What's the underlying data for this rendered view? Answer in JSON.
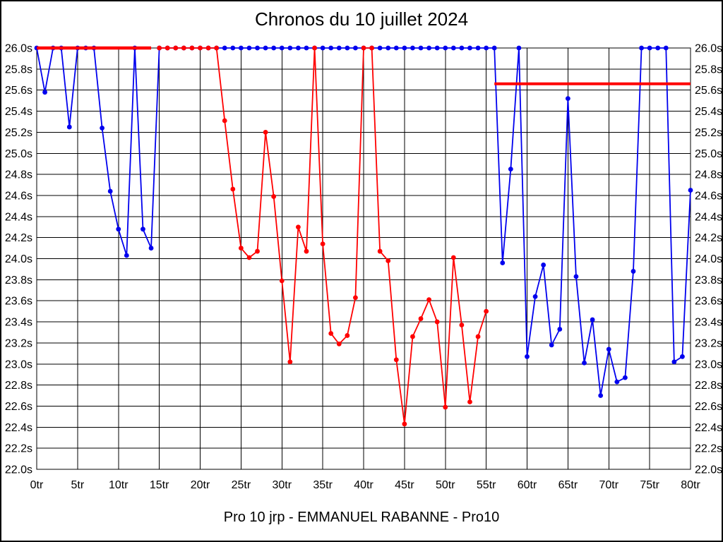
{
  "chart_data": {
    "type": "line",
    "title": "Chronos du 10 juillet 2024",
    "caption": "Pro 10 jrp - EMMANUEL RABANNE - Pro10",
    "x_unit": "tr",
    "y_unit": "s",
    "xlim": [
      0,
      80
    ],
    "ylim": [
      22.0,
      26.0
    ],
    "x_tick_step": 5,
    "y_tick_step": 0.2,
    "grid": true,
    "legend": "none",
    "x_tick_labels": [
      "0tr",
      "5tr",
      "10tr",
      "15tr",
      "20tr",
      "25tr",
      "30tr",
      "35tr",
      "40tr",
      "45tr",
      "50tr",
      "55tr",
      "60tr",
      "65tr",
      "70tr",
      "75tr",
      "80tr"
    ],
    "y_tick_labels": [
      "26.0s",
      "25.8s",
      "25.6s",
      "25.4s",
      "25.2s",
      "25.0s",
      "24.8s",
      "24.6s",
      "24.4s",
      "24.2s",
      "24.0s",
      "23.8s",
      "23.6s",
      "23.4s",
      "23.2s",
      "23.0s",
      "22.8s",
      "22.6s",
      "22.4s",
      "22.2s",
      "22.0s"
    ],
    "series": [
      {
        "name": "blue-series",
        "color": "#0000ee",
        "marker": "circle",
        "points": [
          [
            0,
            26.0
          ],
          [
            1,
            25.58
          ],
          [
            2,
            26.0
          ],
          [
            3,
            26.0
          ],
          [
            4,
            25.25
          ],
          [
            5,
            26.0
          ],
          [
            6,
            26.0
          ],
          [
            7,
            26.0
          ],
          [
            8,
            25.24
          ],
          [
            9,
            24.64
          ],
          [
            10,
            24.28
          ],
          [
            11,
            24.03
          ],
          [
            12,
            26.0
          ],
          [
            13,
            24.28
          ],
          [
            14,
            24.1
          ],
          [
            15,
            26.0
          ],
          [
            16,
            26.0
          ],
          [
            17,
            26.0
          ],
          [
            18,
            26.0
          ],
          [
            19,
            26.0
          ],
          [
            20,
            26.0
          ],
          [
            21,
            26.0
          ],
          [
            22,
            26.0
          ],
          [
            23,
            26.0
          ],
          [
            24,
            26.0
          ],
          [
            25,
            26.0
          ],
          [
            26,
            26.0
          ],
          [
            27,
            26.0
          ],
          [
            28,
            26.0
          ],
          [
            29,
            26.0
          ],
          [
            30,
            26.0
          ],
          [
            31,
            26.0
          ],
          [
            32,
            26.0
          ],
          [
            33,
            26.0
          ],
          [
            34,
            26.0
          ],
          [
            35,
            26.0
          ],
          [
            36,
            26.0
          ],
          [
            37,
            26.0
          ],
          [
            38,
            26.0
          ],
          [
            39,
            26.0
          ],
          [
            40,
            26.0
          ],
          [
            41,
            26.0
          ],
          [
            42,
            26.0
          ],
          [
            43,
            26.0
          ],
          [
            44,
            26.0
          ],
          [
            45,
            26.0
          ],
          [
            46,
            26.0
          ],
          [
            47,
            26.0
          ],
          [
            48,
            26.0
          ],
          [
            49,
            26.0
          ],
          [
            50,
            26.0
          ],
          [
            51,
            26.0
          ],
          [
            52,
            26.0
          ],
          [
            53,
            26.0
          ],
          [
            54,
            26.0
          ],
          [
            55,
            26.0
          ],
          [
            56,
            26.0
          ],
          [
            57,
            23.96
          ],
          [
            58,
            24.85
          ],
          [
            59,
            26.0
          ],
          [
            60,
            23.07
          ],
          [
            61,
            23.64
          ],
          [
            62,
            23.94
          ],
          [
            63,
            23.18
          ],
          [
            64,
            23.33
          ],
          [
            65,
            25.52
          ],
          [
            66,
            23.83
          ],
          [
            67,
            23.01
          ],
          [
            68,
            23.42
          ],
          [
            69,
            22.7
          ],
          [
            70,
            23.14
          ],
          [
            71,
            22.83
          ],
          [
            72,
            22.87
          ],
          [
            73,
            23.88
          ],
          [
            74,
            26.0
          ],
          [
            75,
            26.0
          ],
          [
            76,
            26.0
          ],
          [
            77,
            26.0
          ],
          [
            78,
            23.02
          ],
          [
            79,
            23.07
          ],
          [
            80,
            24.65
          ]
        ]
      },
      {
        "name": "red-series",
        "color": "#ff0000",
        "marker": "circle",
        "points": [
          [
            15,
            26.0
          ],
          [
            16,
            26.0
          ],
          [
            17,
            26.0
          ],
          [
            18,
            26.0
          ],
          [
            19,
            26.0
          ],
          [
            20,
            26.0
          ],
          [
            21,
            26.0
          ],
          [
            22,
            26.0
          ],
          [
            23,
            25.31
          ],
          [
            24,
            24.66
          ],
          [
            25,
            24.1
          ],
          [
            26,
            24.01
          ],
          [
            27,
            24.07
          ],
          [
            28,
            25.2
          ],
          [
            29,
            24.59
          ],
          [
            30,
            23.79
          ],
          [
            31,
            23.02
          ],
          [
            32,
            24.3
          ],
          [
            33,
            24.07
          ],
          [
            34,
            26.0
          ],
          [
            35,
            24.14
          ],
          [
            36,
            23.29
          ],
          [
            37,
            23.19
          ],
          [
            38,
            23.27
          ],
          [
            39,
            23.63
          ],
          [
            40,
            26.0
          ],
          [
            41,
            26.0
          ],
          [
            42,
            24.07
          ],
          [
            43,
            23.98
          ],
          [
            44,
            23.04
          ],
          [
            45,
            22.43
          ],
          [
            46,
            23.26
          ],
          [
            47,
            23.43
          ],
          [
            48,
            23.61
          ],
          [
            49,
            23.4
          ],
          [
            50,
            22.59
          ],
          [
            51,
            24.01
          ],
          [
            52,
            23.37
          ],
          [
            53,
            22.64
          ],
          [
            54,
            23.26
          ],
          [
            55,
            23.5
          ]
        ]
      }
    ],
    "reference_lines": [
      {
        "name": "red-reference-line-left",
        "color": "#ff0000",
        "y": 26.0,
        "x_from": 0,
        "x_to": 14,
        "width": 4.5
      },
      {
        "name": "red-reference-line-right",
        "color": "#ff0000",
        "y": 25.66,
        "x_from": 56,
        "x_to": 80,
        "width": 4.0
      }
    ]
  }
}
